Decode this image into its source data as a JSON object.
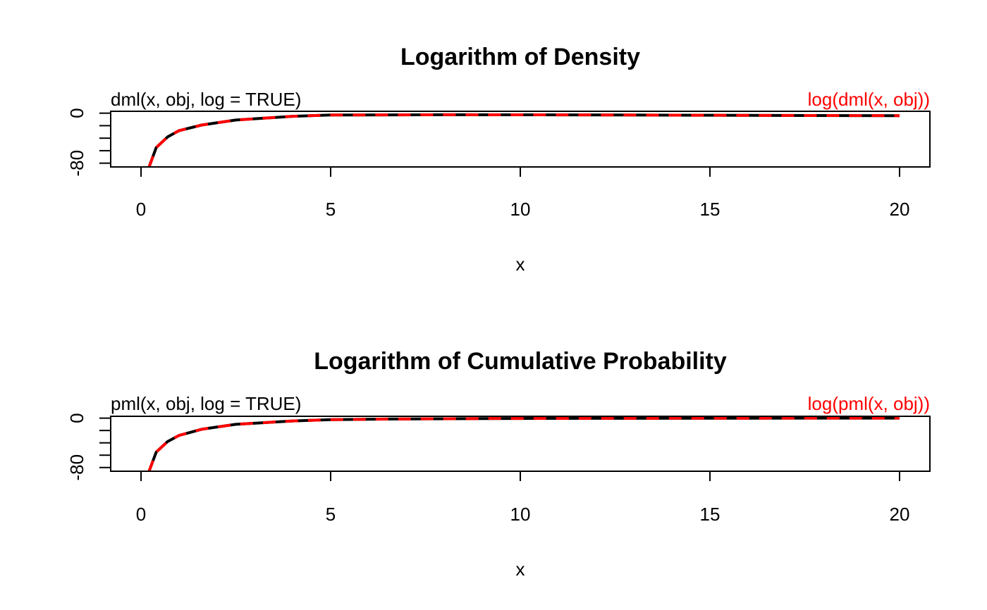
{
  "chart_data": [
    {
      "type": "line",
      "title": "Logarithm of Density",
      "xlabel": "x",
      "ylabel": "",
      "xlim": [
        -0.8,
        20.8
      ],
      "ylim": [
        -86,
        3
      ],
      "x_ticks": [
        0,
        5,
        10,
        15,
        20
      ],
      "y_ticks": [
        0,
        -20,
        -40,
        -60,
        -80
      ],
      "y_tick_labels": [
        {
          "value": 0,
          "label": "0"
        },
        {
          "value": -80,
          "label": "-80"
        }
      ],
      "legend_left": "dml(x, obj, log = TRUE)",
      "legend_right": "log(dml(x, obj))",
      "series": [
        {
          "label": "dml(x, obj, log = TRUE)",
          "color": "#000000",
          "style": "solid",
          "x": [
            0.2,
            0.4,
            0.7,
            1.0,
            1.6,
            2.5,
            4.0,
            5.0,
            8.0,
            11.5,
            14.0,
            16.0,
            20.0
          ],
          "y": [
            -88,
            -55,
            -38,
            -28,
            -19,
            -11,
            -5,
            -3,
            -2.5,
            -2.7,
            -3.2,
            -3.5,
            -4.0
          ]
        },
        {
          "label": "log(dml(x, obj))",
          "color": "#ff0000",
          "style": "dashed",
          "x": [
            0.2,
            0.4,
            0.7,
            1.0,
            1.6,
            2.5,
            4.0,
            5.0,
            8.0,
            11.5,
            14.0,
            16.0,
            20.0
          ],
          "y": [
            -88,
            -55,
            -38,
            -28,
            -19,
            -11,
            -5,
            -3,
            -2.5,
            -2.7,
            -3.2,
            -3.5,
            -4.0
          ]
        }
      ]
    },
    {
      "type": "line",
      "title": "Logarithm of Cumulative Probability",
      "xlabel": "x",
      "ylabel": "",
      "xlim": [
        -0.8,
        20.8
      ],
      "ylim": [
        -86,
        3
      ],
      "x_ticks": [
        0,
        5,
        10,
        15,
        20
      ],
      "y_ticks": [
        0,
        -20,
        -40,
        -60,
        -80
      ],
      "y_tick_labels": [
        {
          "value": 0,
          "label": "0"
        },
        {
          "value": -80,
          "label": "-80"
        }
      ],
      "legend_left": "pml(x, obj, log = TRUE)",
      "legend_right": "log(pml(x, obj))",
      "series": [
        {
          "label": "pml(x, obj, log = TRUE)",
          "color": "#000000",
          "style": "solid",
          "x": [
            0.2,
            0.4,
            0.7,
            1.0,
            1.6,
            2.5,
            4.0,
            5.0,
            6.5,
            9.0,
            12.0,
            16.0,
            20.0
          ],
          "y": [
            -88,
            -55,
            -38,
            -28,
            -18,
            -10,
            -4.5,
            -2.5,
            -1.5,
            -0.7,
            -0.3,
            -0.1,
            0
          ]
        },
        {
          "label": "log(pml(x, obj))",
          "color": "#ff0000",
          "style": "dashed",
          "x": [
            0.2,
            0.4,
            0.7,
            1.0,
            1.6,
            2.5,
            4.0,
            5.0,
            6.5,
            9.0,
            12.0,
            16.0,
            20.0
          ],
          "y": [
            -88,
            -55,
            -38,
            -28,
            -18,
            -10,
            -4.5,
            -2.5,
            -1.5,
            -0.7,
            -0.3,
            -0.1,
            0
          ]
        }
      ]
    }
  ]
}
